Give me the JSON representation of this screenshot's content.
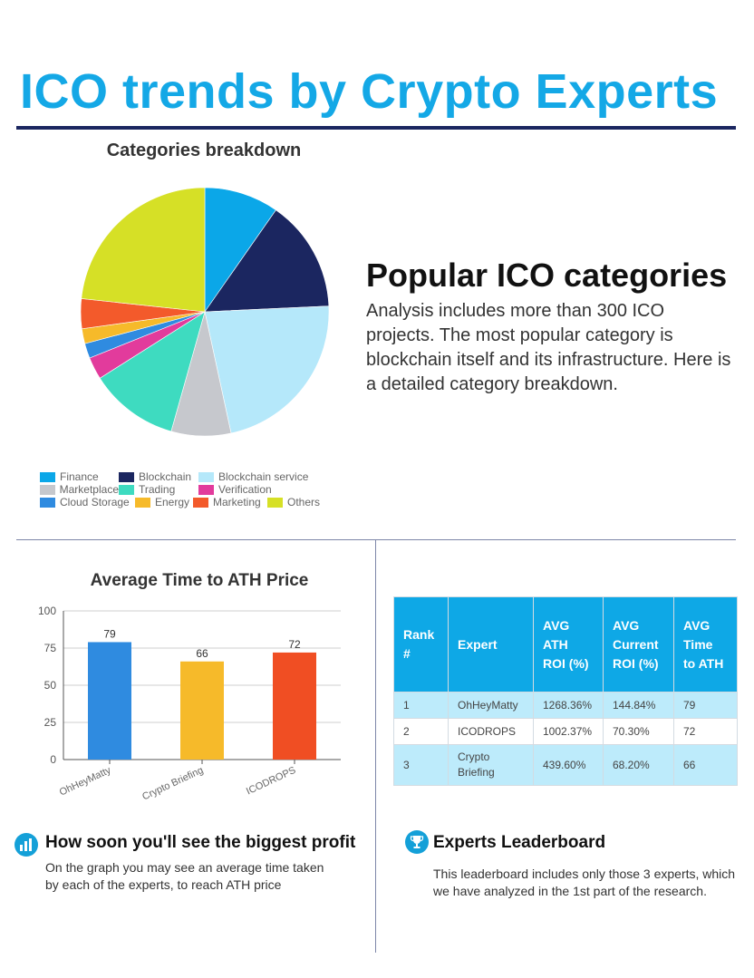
{
  "header": {
    "title": "ICO trends by Crypto Experts"
  },
  "pie": {
    "title": "Categories breakdown"
  },
  "popular": {
    "heading": "Popular ICO categories",
    "text": "Analysis includes more than 300 ICO projects. The most popular category is blockchain itself and its infrastructure. Here is a detailed category breakdown."
  },
  "bar": {
    "title": "Average Time to ATH Price"
  },
  "table": {
    "headers": [
      "Rank #",
      "Expert",
      "AVG ATH ROI (%)",
      "AVG Current ROI (%)",
      "AVG Time to ATH"
    ],
    "rows": [
      [
        "1",
        "OhHeyMatty",
        "1268.36%",
        "144.84%",
        "79"
      ],
      [
        "2",
        "ICODROPS",
        "1002.37%",
        "70.30%",
        "72"
      ],
      [
        "3",
        "Crypto Briefing",
        "439.60%",
        "68.20%",
        "66"
      ]
    ]
  },
  "profit_section": {
    "heading": "How soon you'll see the biggest profit",
    "text": "On the graph you may see an average time taken by each of the experts, to reach ATH price",
    "icon": "bar-chart-icon"
  },
  "leaderboard_section": {
    "heading": "Experts Leaderboard",
    "text": "This leaderboard includes only those 3 experts, which we have analyzed in the 1st part of the research.",
    "icon": "trophy-icon"
  },
  "chart_data": [
    {
      "type": "pie",
      "title": "Categories breakdown",
      "series": [
        {
          "name": "Finance",
          "value": 10,
          "color": "#0ba7e8"
        },
        {
          "name": "Blockchain",
          "value": 15,
          "color": "#1b2660"
        },
        {
          "name": "Blockchain service",
          "value": 23,
          "color": "#b5e8fa"
        },
        {
          "name": "Marketplace",
          "value": 8,
          "color": "#c6c8cd"
        },
        {
          "name": "Trading",
          "value": 12,
          "color": "#3edbc0"
        },
        {
          "name": "Verification",
          "value": 3,
          "color": "#e23b9c"
        },
        {
          "name": "Cloud Storage",
          "value": 2,
          "color": "#2f8be0"
        },
        {
          "name": "Energy",
          "value": 2,
          "color": "#f6ba2a"
        },
        {
          "name": "Marketing",
          "value": 4,
          "color": "#f35a2b"
        },
        {
          "name": "Others",
          "value": 24,
          "color": "#d6e026"
        }
      ],
      "legend_position": "bottom"
    },
    {
      "type": "bar",
      "title": "Average Time to ATH Price",
      "categories": [
        "OhHeyMatty",
        "Crypto Briefing",
        "ICODROPS"
      ],
      "values": [
        79,
        66,
        72
      ],
      "colors": [
        "#2f8be0",
        "#f6ba2a",
        "#f04e23"
      ],
      "ylim": [
        0,
        100
      ],
      "yticks": [
        0,
        25,
        50,
        75,
        100
      ],
      "grid": true,
      "data_labels": true
    }
  ]
}
